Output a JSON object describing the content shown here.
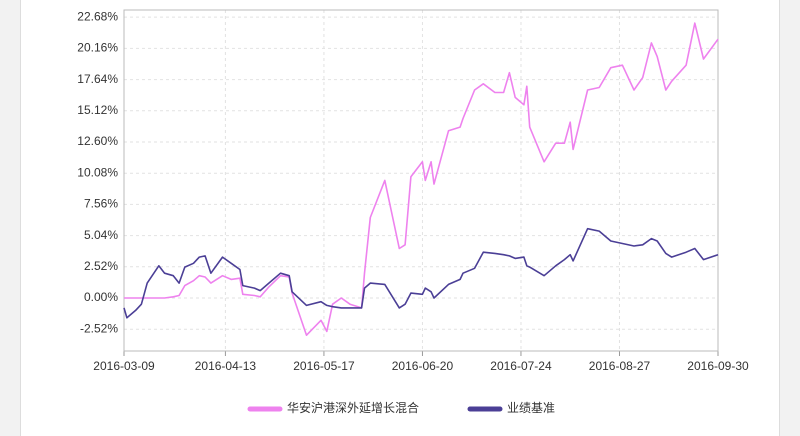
{
  "chart_data": {
    "type": "line",
    "x": [
      "2016-03-09",
      "2016-03-10",
      "2016-03-13",
      "2016-03-15",
      "2016-03-17",
      "2016-03-21",
      "2016-03-23",
      "2016-03-26",
      "2016-03-28",
      "2016-03-30",
      "2016-04-02",
      "2016-04-04",
      "2016-04-06",
      "2016-04-08",
      "2016-04-12",
      "2016-04-15",
      "2016-04-18",
      "2016-04-19",
      "2016-04-23",
      "2016-04-25",
      "2016-04-28",
      "2016-05-02",
      "2016-05-05",
      "2016-05-06",
      "2016-05-11",
      "2016-05-16",
      "2016-05-18",
      "2016-05-20",
      "2016-05-23",
      "2016-05-26",
      "2016-05-30",
      "2016-05-31",
      "2016-06-02",
      "2016-06-07",
      "2016-06-12",
      "2016-06-14",
      "2016-06-16",
      "2016-06-20",
      "2016-06-21",
      "2016-06-23",
      "2016-06-24",
      "2016-06-29",
      "2016-07-03",
      "2016-07-04",
      "2016-07-08",
      "2016-07-11",
      "2016-07-15",
      "2016-07-18",
      "2016-07-20",
      "2016-07-22",
      "2016-07-25",
      "2016-07-26",
      "2016-07-27",
      "2016-08-01",
      "2016-08-05",
      "2016-08-08",
      "2016-08-10",
      "2016-08-11",
      "2016-08-16",
      "2016-08-20",
      "2016-08-24",
      "2016-08-28",
      "2016-09-01",
      "2016-09-04",
      "2016-09-07",
      "2016-09-09",
      "2016-09-12",
      "2016-09-14",
      "2016-09-19",
      "2016-09-22",
      "2016-09-25",
      "2016-09-30"
    ],
    "series": [
      {
        "name": "华安沪港深外延增长混合",
        "color": "#ee82ee",
        "values": [
          0,
          0,
          0,
          0,
          0,
          0,
          0,
          0.1,
          0.2,
          1.0,
          1.4,
          1.8,
          1.7,
          1.2,
          1.8,
          1.5,
          1.6,
          0.3,
          0.2,
          0.1,
          0.9,
          1.8,
          1.7,
          0.4,
          -3.0,
          -1.8,
          -2.7,
          -0.5,
          0.0,
          -0.5,
          -0.8,
          2.0,
          6.5,
          9.5,
          4.0,
          4.3,
          9.8,
          11.0,
          9.5,
          11.0,
          9.2,
          13.5,
          13.8,
          14.5,
          16.8,
          17.3,
          16.6,
          16.6,
          18.2,
          16.2,
          15.6,
          17.1,
          13.8,
          11.0,
          12.5,
          12.5,
          14.2,
          12.0,
          16.8,
          17.0,
          18.6,
          18.8,
          16.8,
          17.8,
          20.6,
          19.5,
          16.8,
          17.5,
          18.8,
          22.2,
          19.3,
          20.9
        ]
      },
      {
        "name": "业绩基准",
        "color": "#4b3f96",
        "values": [
          -0.8,
          -1.6,
          -1.0,
          -0.5,
          1.2,
          2.6,
          2.0,
          1.8,
          1.2,
          2.5,
          2.8,
          3.3,
          3.4,
          2.0,
          3.3,
          2.8,
          2.3,
          1.0,
          0.8,
          0.6,
          1.2,
          2.0,
          1.8,
          0.5,
          -0.6,
          -0.3,
          -0.6,
          -0.7,
          -0.8,
          -0.8,
          -0.8,
          0.8,
          1.2,
          1.1,
          -0.8,
          -0.5,
          0.4,
          0.3,
          0.8,
          0.5,
          0.0,
          1.1,
          1.5,
          2.0,
          2.4,
          3.7,
          3.6,
          3.5,
          3.4,
          3.2,
          3.3,
          2.6,
          2.5,
          1.8,
          2.6,
          3.1,
          3.5,
          3.0,
          5.6,
          5.4,
          4.6,
          4.4,
          4.2,
          4.3,
          4.8,
          4.6,
          3.6,
          3.3,
          3.7,
          4.0,
          3.1,
          3.5
        ]
      }
    ],
    "xlim": [
      "2016-03-09",
      "2016-09-30"
    ],
    "xticks": [
      "2016-03-09",
      "2016-04-13",
      "2016-05-17",
      "2016-06-20",
      "2016-07-24",
      "2016-08-27",
      "2016-09-30"
    ],
    "ylim": [
      -4.28,
      23.26
    ],
    "yticks": [
      {
        "value": -2.52,
        "label": "-2.52%"
      },
      {
        "value": 0,
        "label": "0.00%"
      },
      {
        "value": 2.52,
        "label": "2.52%"
      },
      {
        "value": 5.04,
        "label": "5.04%"
      },
      {
        "value": 7.56,
        "label": "7.56%"
      },
      {
        "value": 10.08,
        "label": "10.08%"
      },
      {
        "value": 12.6,
        "label": "12.60%"
      },
      {
        "value": 15.12,
        "label": "15.12%"
      },
      {
        "value": 17.64,
        "label": "17.64%"
      },
      {
        "value": 20.16,
        "label": "20.16%"
      },
      {
        "value": 22.68,
        "label": "22.68%"
      }
    ],
    "grid": true
  }
}
